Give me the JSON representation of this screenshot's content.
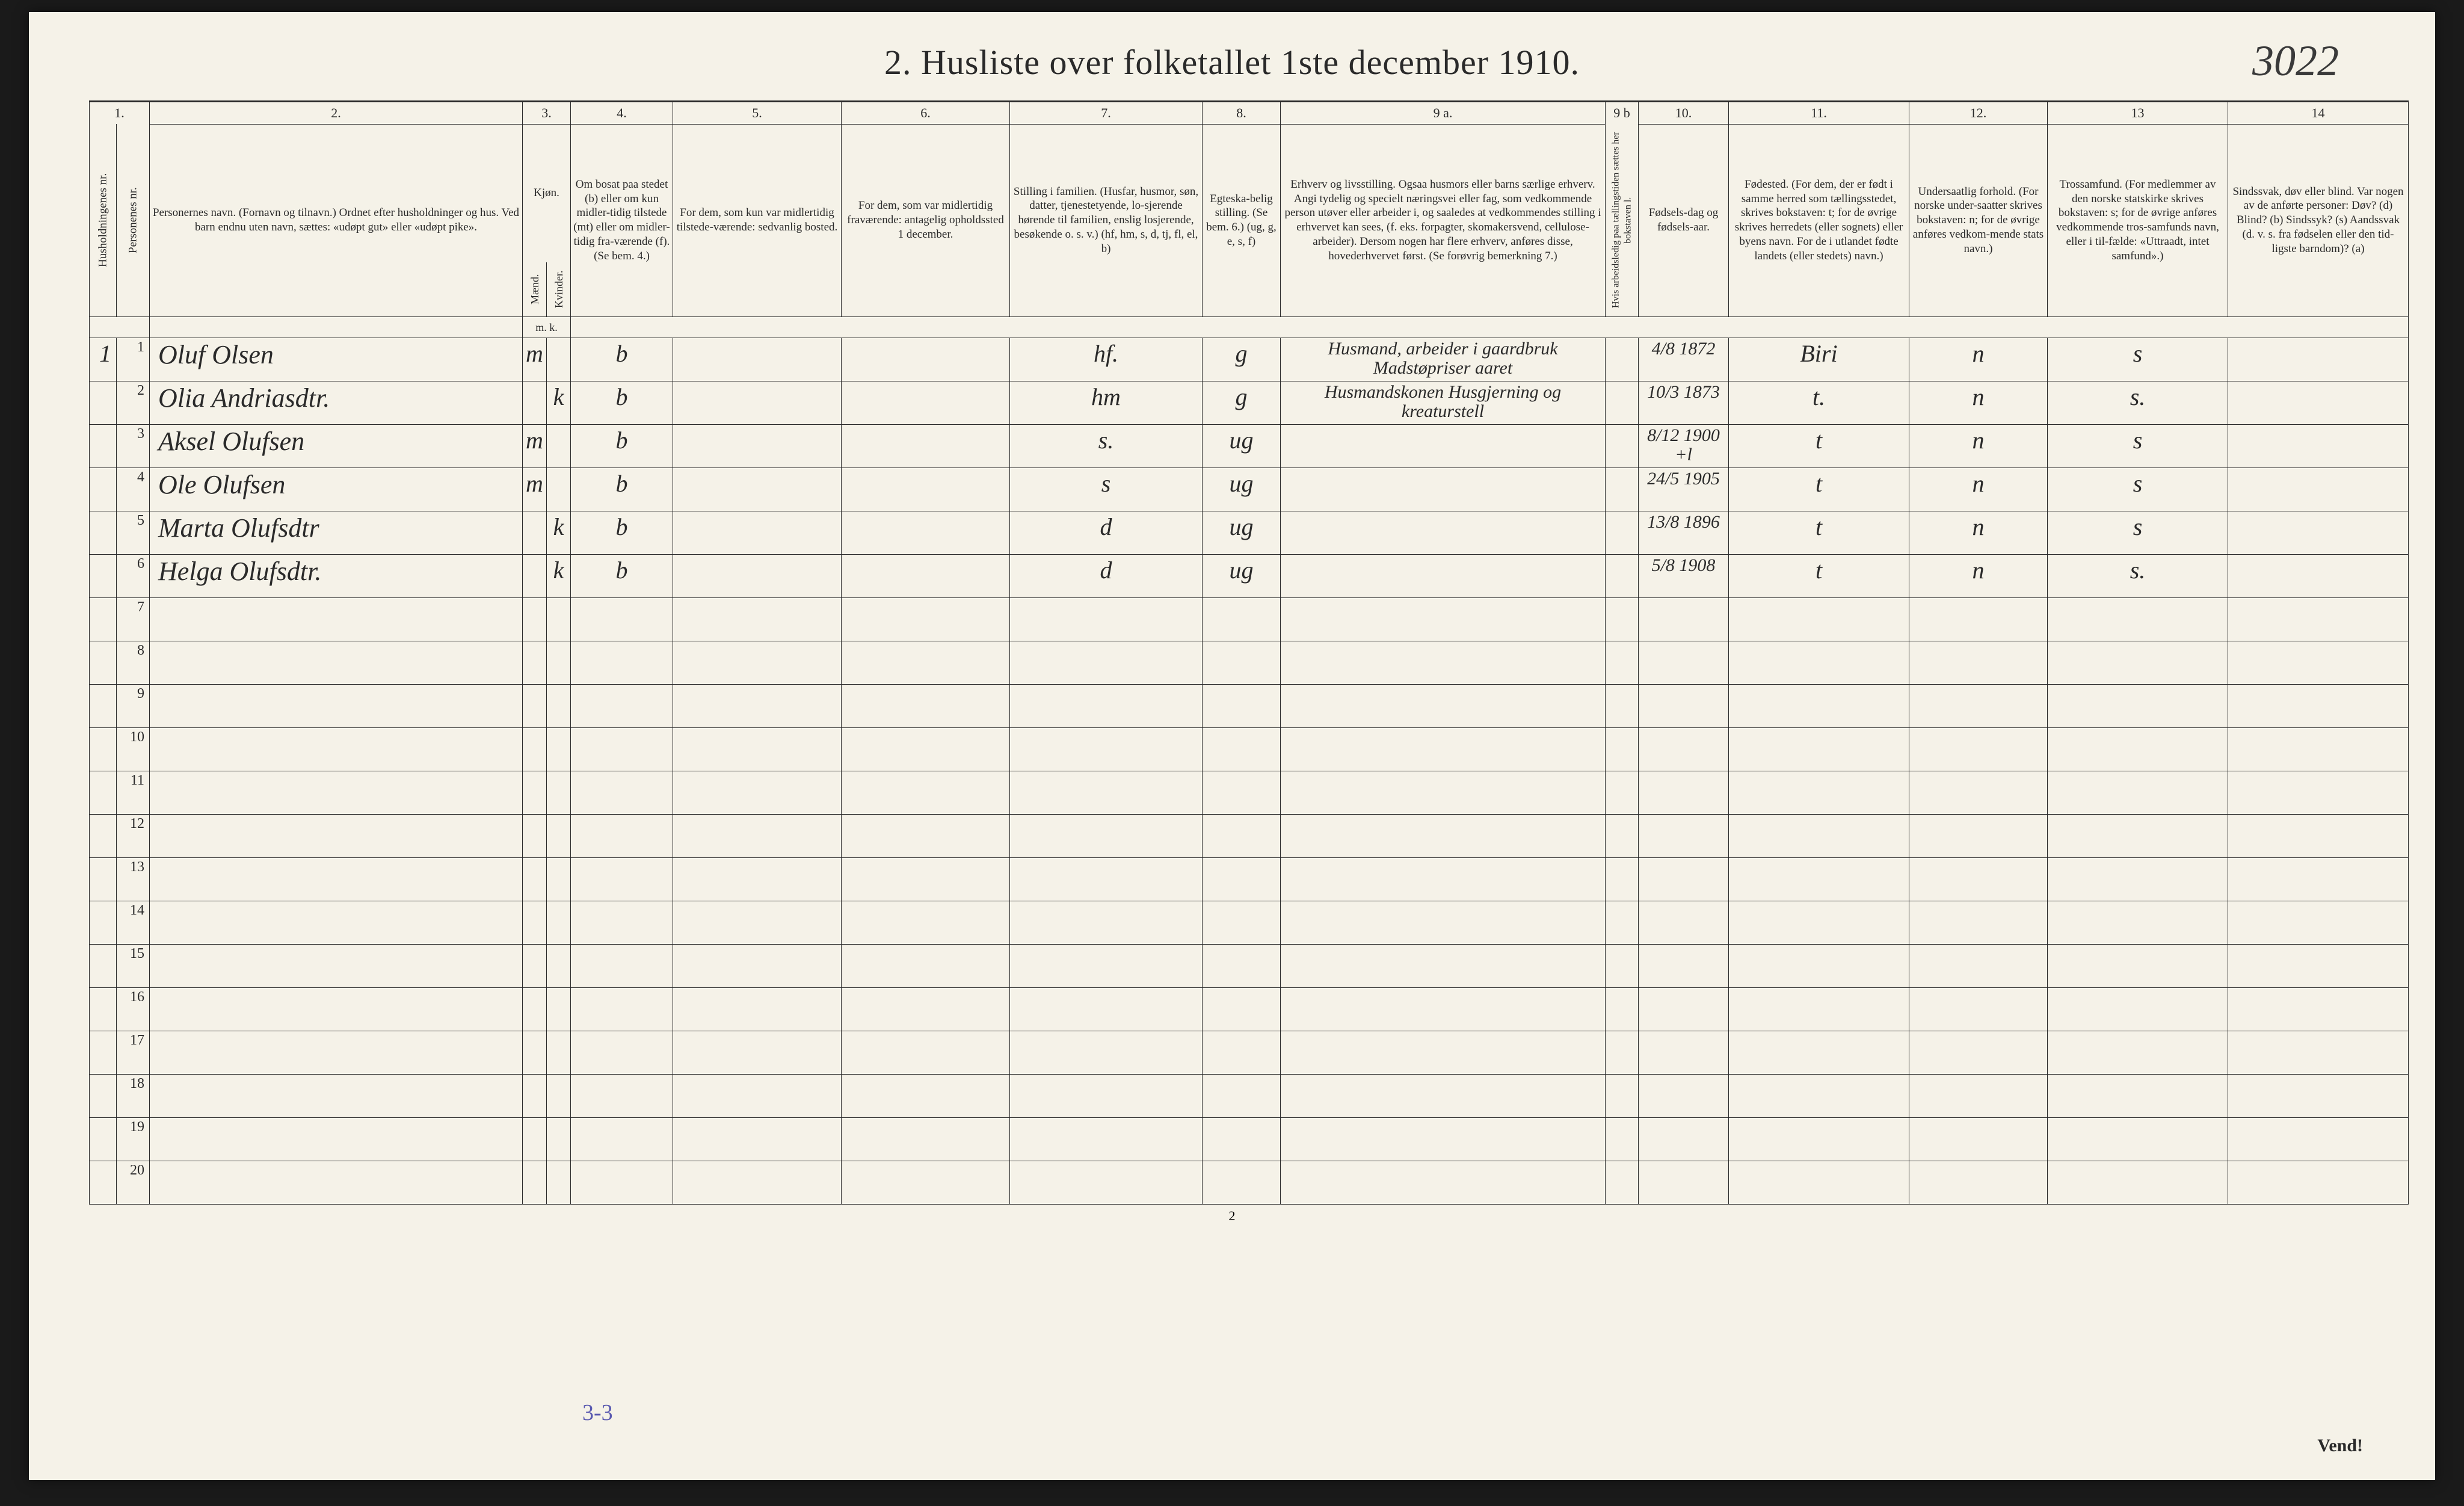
{
  "title": "2.  Husliste over folketallet 1ste december 1910.",
  "handwritten_ref": "3022",
  "page_number": "2",
  "vend": "Vend!",
  "bottom_annotation": "3-3",
  "columns": {
    "c1": "1.",
    "c2": "2.",
    "c3": "3.",
    "c4": "4.",
    "c5": "5.",
    "c6": "6.",
    "c7": "7.",
    "c8": "8.",
    "c9a": "9 a.",
    "c9b": "9 b",
    "c10": "10.",
    "c11": "11.",
    "c12": "12.",
    "c13": "13",
    "c14": "14"
  },
  "headers": {
    "h1": "Husholdningenes nr.",
    "h1b": "Personenes nr.",
    "h2": "Personernes navn.\n(Fornavn og tilnavn.)\nOrdnet efter husholdninger og hus.\nVed barn endnu uten navn, sættes: «udøpt gut» eller «udøpt pike».",
    "h3": "Kjøn.",
    "h3m": "Mænd.",
    "h3k": "Kvinder.",
    "h3mk": "m.  k.",
    "h4": "Om bosat paa stedet (b) eller om kun midler-tidig tilstede (mt) eller om midler-tidig fra-værende (f). (Se bem. 4.)",
    "h5": "For dem, som kun var midlertidig tilstede-værende:\n\nsedvanlig bosted.",
    "h6": "For dem, som var midlertidig fraværende:\n\nantagelig opholdssted 1 december.",
    "h7": "Stilling i familien.\n(Husfar, husmor, søn, datter, tjenestetyende, lo-sjerende hørende til familien, enslig losjerende, besøkende o. s. v.)\n(hf, hm, s, d, tj, fl, el, b)",
    "h8": "Egteska-belig stilling.\n(Se bem. 6.)\n(ug, g, e, s, f)",
    "h9a": "Erhverv og livsstilling.\nOgsaa husmors eller barns særlige erhverv. Angi tydelig og specielt næringsvei eller fag, som vedkommende person utøver eller arbeider i, og saaledes at vedkommendes stilling i erhvervet kan sees, (f. eks. forpagter, skomakersvend, cellulose-arbeider). Dersom nogen har flere erhverv, anføres disse, hovederhvervet først.\n(Se forøvrig bemerkning 7.)",
    "h9b": "Hvis arbeidsledig paa tællingstiden sættes her bokstaven l.",
    "h10": "Fødsels-dag og fødsels-aar.",
    "h11": "Fødested.\n(For dem, der er født i samme herred som tællingsstedet, skrives bokstaven: t; for de øvrige skrives herredets (eller sognets) eller byens navn. For de i utlandet fødte landets (eller stedets) navn.)",
    "h12": "Undersaatlig forhold.\n(For norske under-saatter skrives bokstaven: n; for de øvrige anføres vedkom-mende stats navn.)",
    "h13": "Trossamfund.\n(For medlemmer av den norske statskirke skrives bokstaven: s; for de øvrige anføres vedkommende tros-samfunds navn, eller i til-fælde: «Uttraadt, intet samfund».)",
    "h14": "Sindssvak, døv eller blind.\nVar nogen av de anførte personer:\nDøv?      (d)\nBlind?    (b)\nSindssyk? (s)\nAandssvak (d. v. s. fra fødselen eller den tid-ligste barndom)? (a)"
  },
  "rows": [
    {
      "hh": "1",
      "pn": "1",
      "name": "Oluf Olsen",
      "mk": "m",
      "res": "b",
      "col5": "",
      "col6": "",
      "fam": "hf.",
      "eg": "g",
      "erhverv": "Husmand, arbeider i gaardbruk\nMadstøpriser   aaret",
      "led": "",
      "dob": "4/8 1872",
      "fsted": "Biri",
      "und": "n",
      "tro": "s",
      "sind": ""
    },
    {
      "hh": "",
      "pn": "2",
      "name": "Olia Andriasdtr.",
      "mk": "k",
      "res": "b",
      "col5": "",
      "col6": "",
      "fam": "hm",
      "eg": "g",
      "erhverv": "Husmandskonen\nHusgjerning og kreaturstell",
      "led": "",
      "dob": "10/3 1873",
      "fsted": "t.",
      "und": "n",
      "tro": "s.",
      "sind": ""
    },
    {
      "hh": "",
      "pn": "3",
      "name": "Aksel Olufsen",
      "mk": "m",
      "res": "b",
      "col5": "",
      "col6": "",
      "fam": "s.",
      "eg": "ug",
      "erhverv": "",
      "led": "",
      "dob": "8/12 1900 +l",
      "fsted": "t",
      "und": "n",
      "tro": "s",
      "sind": ""
    },
    {
      "hh": "",
      "pn": "4",
      "name": "Ole Olufsen",
      "mk": "m",
      "res": "b",
      "col5": "",
      "col6": "",
      "fam": "s",
      "eg": "ug",
      "erhverv": "",
      "led": "",
      "dob": "24/5 1905",
      "fsted": "t",
      "und": "n",
      "tro": "s",
      "sind": ""
    },
    {
      "hh": "",
      "pn": "5",
      "name": "Marta Olufsdtr",
      "mk": "k",
      "res": "b",
      "col5": "",
      "col6": "",
      "fam": "d",
      "eg": "ug",
      "erhverv": "",
      "led": "",
      "dob": "13/8 1896",
      "fsted": "t",
      "und": "n",
      "tro": "s",
      "sind": ""
    },
    {
      "hh": "",
      "pn": "6",
      "name": "Helga Olufsdtr.",
      "mk": "k",
      "res": "b",
      "col5": "",
      "col6": "",
      "fam": "d",
      "eg": "ug",
      "erhverv": "",
      "led": "",
      "dob": "5/8 1908",
      "fsted": "t",
      "und": "n",
      "tro": "s.",
      "sind": ""
    },
    {
      "hh": "",
      "pn": "7",
      "name": "",
      "mk": "",
      "res": "",
      "col5": "",
      "col6": "",
      "fam": "",
      "eg": "",
      "erhverv": "",
      "led": "",
      "dob": "",
      "fsted": "",
      "und": "",
      "tro": "",
      "sind": ""
    },
    {
      "hh": "",
      "pn": "8",
      "name": "",
      "mk": "",
      "res": "",
      "col5": "",
      "col6": "",
      "fam": "",
      "eg": "",
      "erhverv": "",
      "led": "",
      "dob": "",
      "fsted": "",
      "und": "",
      "tro": "",
      "sind": ""
    },
    {
      "hh": "",
      "pn": "9",
      "name": "",
      "mk": "",
      "res": "",
      "col5": "",
      "col6": "",
      "fam": "",
      "eg": "",
      "erhverv": "",
      "led": "",
      "dob": "",
      "fsted": "",
      "und": "",
      "tro": "",
      "sind": ""
    },
    {
      "hh": "",
      "pn": "10",
      "name": "",
      "mk": "",
      "res": "",
      "col5": "",
      "col6": "",
      "fam": "",
      "eg": "",
      "erhverv": "",
      "led": "",
      "dob": "",
      "fsted": "",
      "und": "",
      "tro": "",
      "sind": ""
    },
    {
      "hh": "",
      "pn": "11",
      "name": "",
      "mk": "",
      "res": "",
      "col5": "",
      "col6": "",
      "fam": "",
      "eg": "",
      "erhverv": "",
      "led": "",
      "dob": "",
      "fsted": "",
      "und": "",
      "tro": "",
      "sind": ""
    },
    {
      "hh": "",
      "pn": "12",
      "name": "",
      "mk": "",
      "res": "",
      "col5": "",
      "col6": "",
      "fam": "",
      "eg": "",
      "erhverv": "",
      "led": "",
      "dob": "",
      "fsted": "",
      "und": "",
      "tro": "",
      "sind": ""
    },
    {
      "hh": "",
      "pn": "13",
      "name": "",
      "mk": "",
      "res": "",
      "col5": "",
      "col6": "",
      "fam": "",
      "eg": "",
      "erhverv": "",
      "led": "",
      "dob": "",
      "fsted": "",
      "und": "",
      "tro": "",
      "sind": ""
    },
    {
      "hh": "",
      "pn": "14",
      "name": "",
      "mk": "",
      "res": "",
      "col5": "",
      "col6": "",
      "fam": "",
      "eg": "",
      "erhverv": "",
      "led": "",
      "dob": "",
      "fsted": "",
      "und": "",
      "tro": "",
      "sind": ""
    },
    {
      "hh": "",
      "pn": "15",
      "name": "",
      "mk": "",
      "res": "",
      "col5": "",
      "col6": "",
      "fam": "",
      "eg": "",
      "erhverv": "",
      "led": "",
      "dob": "",
      "fsted": "",
      "und": "",
      "tro": "",
      "sind": ""
    },
    {
      "hh": "",
      "pn": "16",
      "name": "",
      "mk": "",
      "res": "",
      "col5": "",
      "col6": "",
      "fam": "",
      "eg": "",
      "erhverv": "",
      "led": "",
      "dob": "",
      "fsted": "",
      "und": "",
      "tro": "",
      "sind": ""
    },
    {
      "hh": "",
      "pn": "17",
      "name": "",
      "mk": "",
      "res": "",
      "col5": "",
      "col6": "",
      "fam": "",
      "eg": "",
      "erhverv": "",
      "led": "",
      "dob": "",
      "fsted": "",
      "und": "",
      "tro": "",
      "sind": ""
    },
    {
      "hh": "",
      "pn": "18",
      "name": "",
      "mk": "",
      "res": "",
      "col5": "",
      "col6": "",
      "fam": "",
      "eg": "",
      "erhverv": "",
      "led": "",
      "dob": "",
      "fsted": "",
      "und": "",
      "tro": "",
      "sind": ""
    },
    {
      "hh": "",
      "pn": "19",
      "name": "",
      "mk": "",
      "res": "",
      "col5": "",
      "col6": "",
      "fam": "",
      "eg": "",
      "erhverv": "",
      "led": "",
      "dob": "",
      "fsted": "",
      "und": "",
      "tro": "",
      "sind": ""
    },
    {
      "hh": "",
      "pn": "20",
      "name": "",
      "mk": "",
      "res": "",
      "col5": "",
      "col6": "",
      "fam": "",
      "eg": "",
      "erhverv": "",
      "led": "",
      "dob": "",
      "fsted": "",
      "und": "",
      "tro": "",
      "sind": ""
    }
  ],
  "col_widths": {
    "c1a": 45,
    "c1b": 55,
    "c2": 620,
    "c3a": 40,
    "c3b": 40,
    "c4": 170,
    "c5": 280,
    "c6": 280,
    "c7": 320,
    "c8": 130,
    "c9a": 540,
    "c9b": 55,
    "c10": 150,
    "c11": 300,
    "c12": 230,
    "c13": 300,
    "c14": 300
  },
  "colors": {
    "paper": "#f5f2e8",
    "ink": "#2a2a2a",
    "pencil_blue": "#5a5ab0",
    "background": "#1a1a1a"
  }
}
